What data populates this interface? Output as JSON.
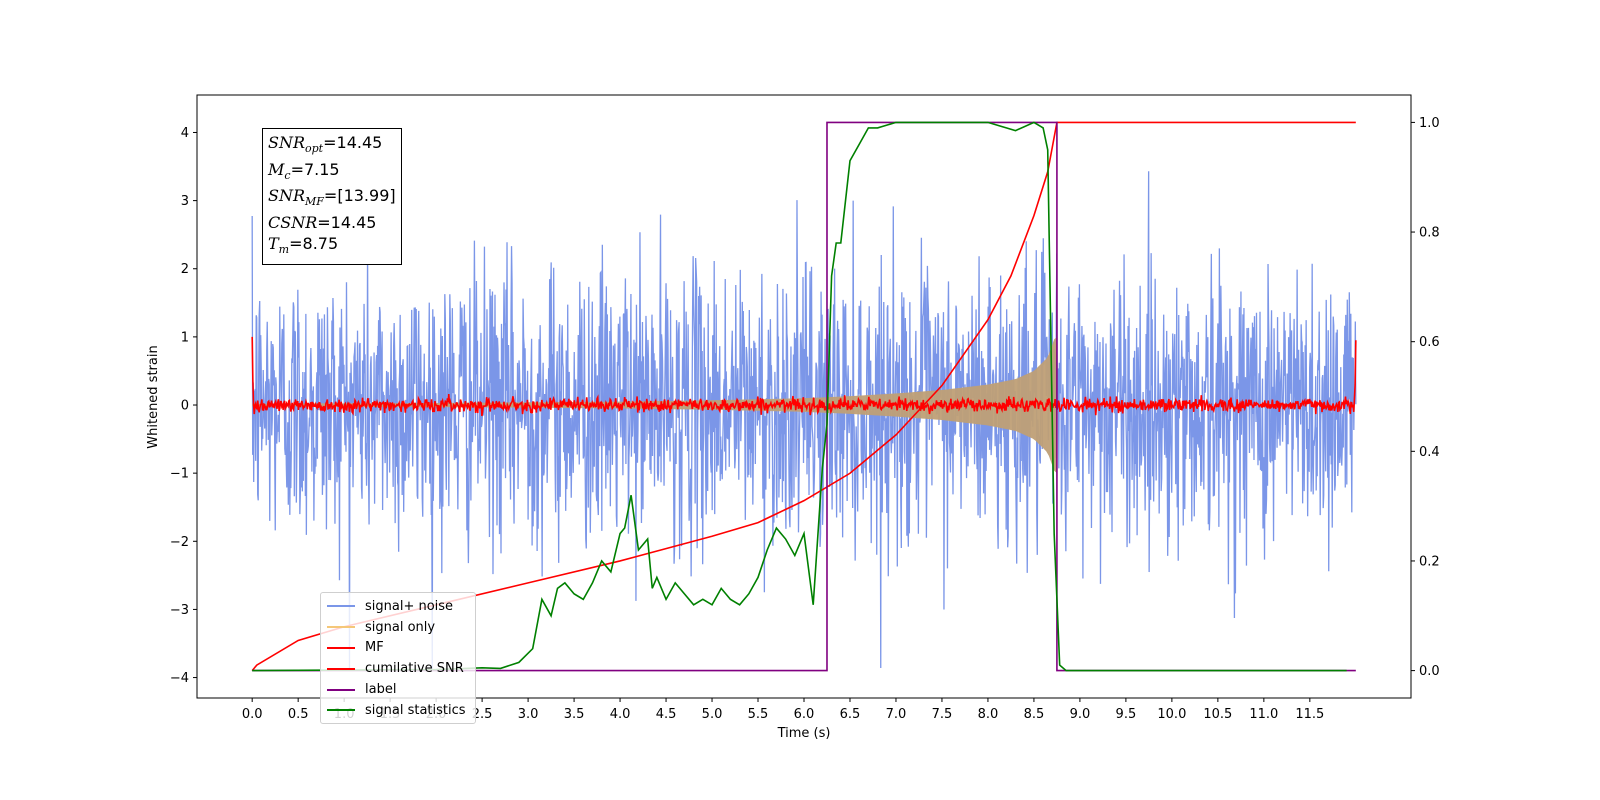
{
  "chart_data": {
    "type": "line",
    "xlabel": "Time (s)",
    "ylabel": "Whitened strain",
    "xlim": [
      -0.6,
      12.6
    ],
    "ylim": [
      -4.3,
      4.55
    ],
    "ylim_right": [
      -0.05,
      1.05
    ],
    "x_ticks": [
      "0.0",
      "0.5",
      "1.0",
      "1.5",
      "2.0",
      "2.5",
      "3.0",
      "3.5",
      "4.0",
      "4.5",
      "5.0",
      "5.5",
      "6.0",
      "6.5",
      "7.0",
      "7.5",
      "8.0",
      "8.5",
      "9.0",
      "9.5",
      "10.0",
      "10.5",
      "11.0",
      "11.5"
    ],
    "y_ticks_left": [
      "4",
      "3",
      "2",
      "1",
      "0",
      "−1",
      "−2",
      "−3",
      "−4"
    ],
    "y_ticks_right": [
      "1.0",
      "0.8",
      "0.6",
      "0.4",
      "0.2",
      "0.0"
    ],
    "annotation": {
      "snr_opt": "14.45",
      "mc": "7.15",
      "snr_mf": "[13.99]",
      "csnr": "14.45",
      "tm": "8.75"
    },
    "series": [
      {
        "name": "signal+ noise",
        "axis": "left",
        "color": "#7b96e8",
        "x_range": [
          0,
          12
        ],
        "amplitude_rms": 1.0,
        "peak": 3.9
      },
      {
        "name": "signal only",
        "axis": "left",
        "color": "#f5c778",
        "x_range": [
          0,
          8.75
        ],
        "envelope": {
          "x": [
            0,
            2,
            4,
            5,
            6,
            6.5,
            7,
            7.5,
            8,
            8.3,
            8.5,
            8.65,
            8.73
          ],
          "y": [
            0.02,
            0.03,
            0.05,
            0.07,
            0.1,
            0.13,
            0.17,
            0.22,
            0.3,
            0.38,
            0.5,
            0.7,
            1.0
          ]
        }
      },
      {
        "name": "MF",
        "axis": "left",
        "color": "#ff0000",
        "x_range": [
          0,
          12
        ],
        "baseline": 0.0,
        "noise": 0.05,
        "edge_peaks": [
          1.0,
          0.95
        ]
      },
      {
        "name": "cumilative SNR",
        "axis": "right",
        "color": "#ff0000",
        "x": [
          0,
          0.05,
          0.5,
          1.0,
          2.0,
          3.0,
          4.0,
          5.0,
          5.5,
          6.0,
          6.5,
          7.0,
          7.5,
          8.0,
          8.25,
          8.5,
          8.65,
          8.75,
          12.0
        ],
        "y": [
          0.0,
          0.01,
          0.055,
          0.08,
          0.12,
          0.16,
          0.2,
          0.245,
          0.27,
          0.31,
          0.36,
          0.43,
          0.52,
          0.64,
          0.72,
          0.83,
          0.91,
          1.0,
          1.0
        ]
      },
      {
        "name": "label",
        "axis": "right",
        "color": "#800080",
        "x": [
          0,
          6.25,
          6.25,
          8.75,
          8.75,
          12.0
        ],
        "y": [
          0,
          0,
          1,
          1,
          0,
          0
        ]
      },
      {
        "name": "signal statistics",
        "axis": "right",
        "color": "#008000",
        "x": [
          0,
          2.0,
          2.5,
          2.7,
          2.9,
          3.05,
          3.15,
          3.25,
          3.32,
          3.4,
          3.5,
          3.6,
          3.7,
          3.8,
          3.9,
          4.0,
          4.05,
          4.12,
          4.2,
          4.3,
          4.35,
          4.4,
          4.5,
          4.6,
          4.7,
          4.8,
          4.9,
          5.0,
          5.1,
          5.2,
          5.3,
          5.4,
          5.5,
          5.6,
          5.7,
          5.8,
          5.9,
          6.0,
          6.1,
          6.2,
          6.25,
          6.3,
          6.35,
          6.4,
          6.5,
          6.6,
          6.7,
          6.8,
          7.0,
          7.2,
          7.5,
          7.8,
          8.0,
          8.2,
          8.3,
          8.5,
          8.6,
          8.65,
          8.72,
          8.78,
          8.85,
          9.0,
          11.9
        ],
        "y": [
          0.0,
          0.002,
          0.005,
          0.004,
          0.015,
          0.04,
          0.13,
          0.1,
          0.15,
          0.16,
          0.14,
          0.13,
          0.16,
          0.2,
          0.18,
          0.25,
          0.26,
          0.32,
          0.22,
          0.24,
          0.15,
          0.17,
          0.13,
          0.16,
          0.14,
          0.12,
          0.13,
          0.12,
          0.15,
          0.13,
          0.12,
          0.14,
          0.17,
          0.22,
          0.26,
          0.24,
          0.21,
          0.25,
          0.12,
          0.37,
          0.45,
          0.72,
          0.78,
          0.78,
          0.93,
          0.96,
          0.99,
          0.99,
          1.0,
          1.0,
          1.0,
          1.0,
          1.0,
          0.99,
          0.985,
          1.0,
          0.99,
          0.95,
          0.25,
          0.01,
          0.0,
          0.0,
          0.0
        ]
      }
    ]
  }
}
